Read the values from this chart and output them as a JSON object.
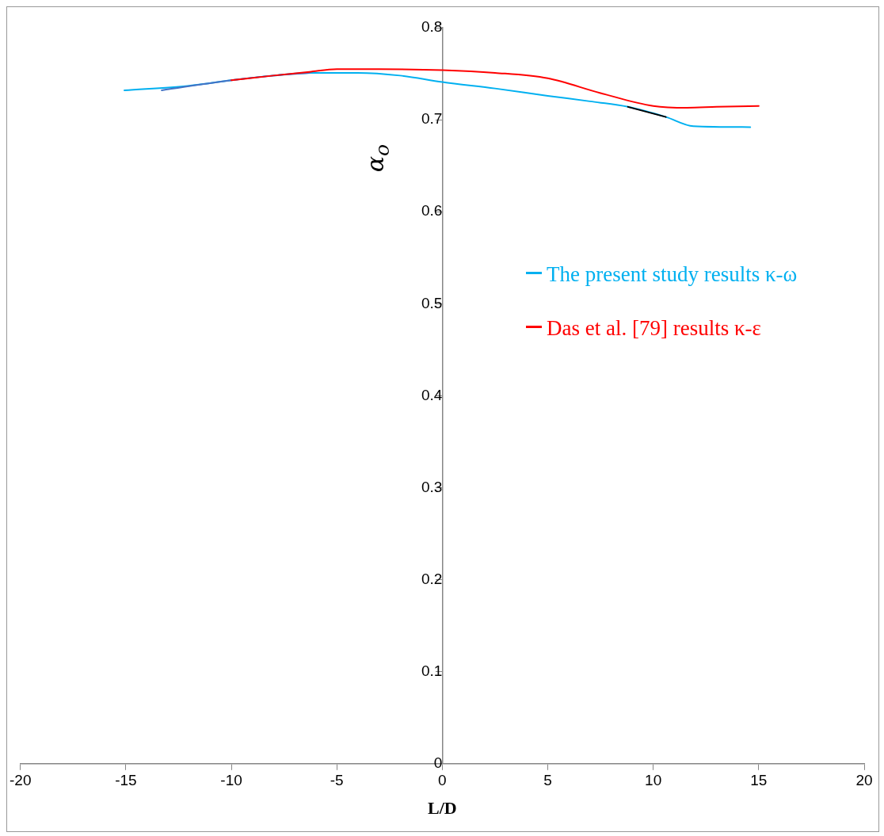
{
  "chart_data": {
    "type": "line",
    "xlabel": "L/D",
    "ylabel": "α$_{o}$",
    "xlim": [
      -20,
      20
    ],
    "xticks": [
      -20,
      -15,
      -10,
      -5,
      0,
      5,
      10,
      15,
      20
    ],
    "ylim": [
      0,
      0.8
    ],
    "yticks": [
      0,
      0.1,
      0.2,
      0.3,
      0.4,
      0.5,
      0.6,
      0.7,
      0.8
    ],
    "grid": false,
    "legend": "right",
    "marker": "none",
    "line_style": "solid",
    "series": [
      {
        "color": "#000000",
        "x": [
          8.8,
          10.6
        ],
        "values": [
          0.714,
          0.703
        ]
      },
      {
        "name": "Das et al. [79] results κ-ε",
        "color": "#ff0000",
        "x": [
          -10,
          -8,
          -6.3,
          -5,
          -3,
          0,
          2.5,
          5,
          7.5,
          10,
          11.6,
          13,
          15
        ],
        "values": [
          0.743,
          0.748,
          0.752,
          0.755,
          0.755,
          0.754,
          0.751,
          0.745,
          0.729,
          0.715,
          0.713,
          0.714,
          0.715
        ]
      },
      {
        "color": "#4472c4",
        "x": [
          -13.3,
          -10,
          -8,
          -6.3
        ],
        "values": [
          0.732,
          0.743,
          0.748,
          0.751
        ]
      },
      {
        "name": "The present study  results κ-ω",
        "color": "#00b0f0",
        "x": [
          -15.07,
          -12,
          -10,
          -8,
          -6.3,
          -4,
          -2,
          0,
          2.5,
          5,
          7,
          8.8,
          10.6,
          11.9,
          14.6
        ],
        "values": [
          0.732,
          0.737,
          0.743,
          0.748,
          0.751,
          0.751,
          0.748,
          0.741,
          0.734,
          0.726,
          0.72,
          0.714,
          0.703,
          0.693,
          0.692
        ]
      }
    ]
  }
}
